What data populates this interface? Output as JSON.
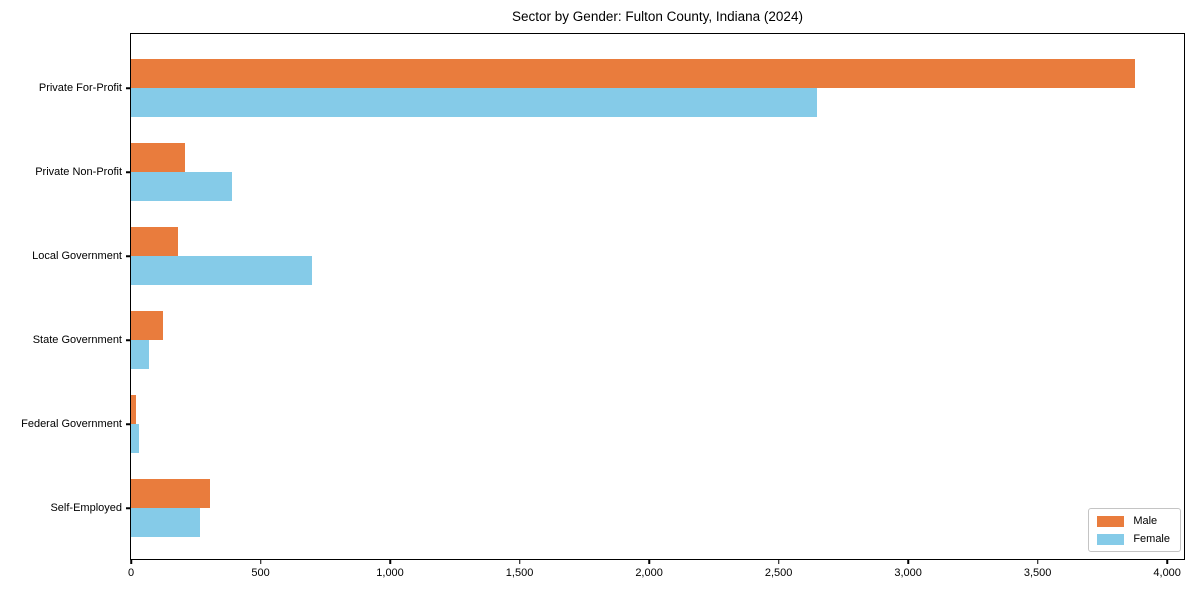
{
  "chart_data": {
    "type": "bar",
    "orientation": "horizontal",
    "title": "Sector by Gender: Fulton County, Indiana (2024)",
    "categories": [
      "Private For-Profit",
      "Private Non-Profit",
      "Local Government",
      "State Government",
      "Federal Government",
      "Self-Employed"
    ],
    "series": [
      {
        "name": "Male",
        "color": "#e97c3d",
        "values": [
          3875,
          210,
          180,
          125,
          20,
          305
        ]
      },
      {
        "name": "Female",
        "color": "#85cbe8",
        "values": [
          2650,
          390,
          700,
          70,
          30,
          265
        ]
      }
    ],
    "xlabel": "",
    "ylabel": "",
    "xlim": [
      0,
      4065
    ],
    "x_ticks": [
      0,
      500,
      1000,
      1500,
      2000,
      2500,
      3000,
      3500,
      4000
    ],
    "x_tick_labels": [
      "0",
      "500",
      "1,000",
      "1,500",
      "2,000",
      "2,500",
      "3,000",
      "3,500",
      "4,000"
    ],
    "grid": false,
    "legend_position": "lower right"
  }
}
